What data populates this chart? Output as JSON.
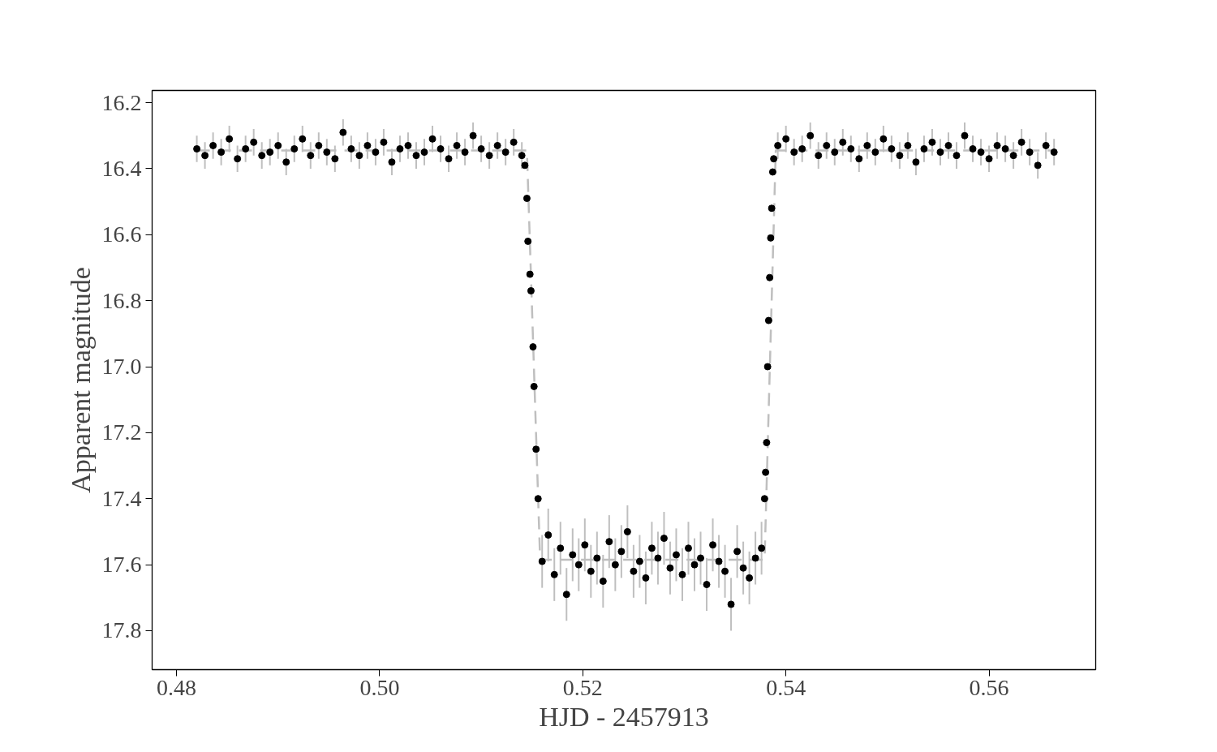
{
  "chart_data": {
    "type": "scatter",
    "xlabel": "HJD - 2457913",
    "ylabel": "Apparent magnitude",
    "xlim": [
      0.4776,
      0.5705
    ],
    "ylim": [
      17.918,
      16.163
    ],
    "xticks": [
      {
        "value": 0.48,
        "label": "0.48"
      },
      {
        "value": 0.5,
        "label": "0.50"
      },
      {
        "value": 0.52,
        "label": "0.52"
      },
      {
        "value": 0.54,
        "label": "0.54"
      },
      {
        "value": 0.56,
        "label": "0.56"
      }
    ],
    "yticks": [
      16.2,
      16.4,
      16.6,
      16.8,
      {
        "value": 17.0,
        "label": "17.0"
      },
      17.2,
      17.4,
      17.6,
      17.8
    ],
    "grid": false,
    "series": [
      {
        "type": "line",
        "color": "#bfbfbf",
        "line_style": "dashed",
        "x": [
          0.482,
          0.5145,
          0.5158,
          0.5379,
          0.539,
          0.5665
        ],
        "values": [
          16.345,
          16.345,
          17.585,
          17.585,
          16.345,
          16.345
        ]
      },
      {
        "marker": "circle",
        "color": "#000000",
        "x": [
          0.482,
          0.4828,
          0.4836,
          0.4844,
          0.4852,
          0.486,
          0.4868,
          0.4876,
          0.4884,
          0.4892,
          0.49,
          0.4908,
          0.4916,
          0.4924,
          0.4932,
          0.494,
          0.4948,
          0.4956,
          0.4964,
          0.4972,
          0.498,
          0.4988,
          0.4996,
          0.5004,
          0.5012,
          0.502,
          0.5028,
          0.5036,
          0.5044,
          0.5052,
          0.506,
          0.5068,
          0.5076,
          0.5084,
          0.5092,
          0.51,
          0.5108,
          0.5116,
          0.5124,
          0.5132,
          0.514,
          0.5143,
          0.5145,
          0.5146,
          0.5148,
          0.5149,
          0.5151,
          0.5152,
          0.5154,
          0.5156,
          0.516,
          0.5166,
          0.5172,
          0.5178,
          0.5184,
          0.519,
          0.5196,
          0.5202,
          0.5208,
          0.5214,
          0.522,
          0.5226,
          0.5232,
          0.5238,
          0.5244,
          0.525,
          0.5256,
          0.5262,
          0.5268,
          0.5274,
          0.528,
          0.5286,
          0.5292,
          0.5298,
          0.5304,
          0.531,
          0.5316,
          0.5322,
          0.5328,
          0.5334,
          0.534,
          0.5346,
          0.5352,
          0.5358,
          0.5364,
          0.537,
          0.5376,
          0.5379,
          0.538,
          0.5381,
          0.5382,
          0.5383,
          0.5384,
          0.5385,
          0.5386,
          0.5387,
          0.5388,
          0.5392,
          0.54,
          0.5408,
          0.5416,
          0.5424,
          0.5432,
          0.544,
          0.5448,
          0.5456,
          0.5464,
          0.5472,
          0.548,
          0.5488,
          0.5496,
          0.5504,
          0.5512,
          0.552,
          0.5528,
          0.5536,
          0.5544,
          0.5552,
          0.556,
          0.5568,
          0.5576,
          0.5584,
          0.5592,
          0.56,
          0.5608,
          0.5616,
          0.5624,
          0.5632,
          0.564,
          0.5648,
          0.5656,
          0.5664
        ],
        "values": [
          16.34,
          16.36,
          16.33,
          16.35,
          16.31,
          16.37,
          16.34,
          16.32,
          16.36,
          16.35,
          16.33,
          16.38,
          16.34,
          16.31,
          16.36,
          16.33,
          16.35,
          16.37,
          16.29,
          16.34,
          16.36,
          16.33,
          16.35,
          16.32,
          16.38,
          16.34,
          16.33,
          16.36,
          16.35,
          16.31,
          16.34,
          16.37,
          16.33,
          16.35,
          16.3,
          16.34,
          16.36,
          16.33,
          16.35,
          16.32,
          16.36,
          16.39,
          16.49,
          16.62,
          16.72,
          16.77,
          16.94,
          17.06,
          17.25,
          17.4,
          17.59,
          17.51,
          17.63,
          17.55,
          17.69,
          17.57,
          17.6,
          17.54,
          17.62,
          17.58,
          17.65,
          17.53,
          17.6,
          17.56,
          17.5,
          17.62,
          17.59,
          17.64,
          17.55,
          17.58,
          17.52,
          17.61,
          17.57,
          17.63,
          17.55,
          17.6,
          17.58,
          17.66,
          17.54,
          17.59,
          17.62,
          17.72,
          17.56,
          17.61,
          17.64,
          17.58,
          17.55,
          17.4,
          17.32,
          17.23,
          17.0,
          16.86,
          16.73,
          16.61,
          16.52,
          16.41,
          16.37,
          16.33,
          16.31,
          16.35,
          16.34,
          16.3,
          16.36,
          16.33,
          16.35,
          16.32,
          16.34,
          16.37,
          16.33,
          16.35,
          16.31,
          16.34,
          16.36,
          16.33,
          16.38,
          16.34,
          16.32,
          16.35,
          16.33,
          16.36,
          16.3,
          16.34,
          16.35,
          16.37,
          16.33,
          16.34,
          16.36,
          16.32,
          16.35,
          16.39,
          16.33,
          16.35
        ],
        "errors": [
          0.04,
          0.04,
          0.04,
          0.04,
          0.04,
          0.04,
          0.04,
          0.04,
          0.04,
          0.04,
          0.04,
          0.04,
          0.04,
          0.04,
          0.04,
          0.04,
          0.04,
          0.04,
          0.04,
          0.04,
          0.04,
          0.04,
          0.04,
          0.04,
          0.04,
          0.04,
          0.04,
          0.04,
          0.04,
          0.04,
          0.04,
          0.04,
          0.04,
          0.04,
          0.04,
          0.04,
          0.04,
          0.04,
          0.04,
          0.04,
          0.04,
          null,
          null,
          null,
          null,
          null,
          null,
          null,
          null,
          null,
          0.08,
          0.08,
          0.08,
          0.08,
          0.08,
          0.08,
          0.08,
          0.08,
          0.08,
          0.08,
          0.08,
          0.08,
          0.08,
          0.08,
          0.08,
          0.08,
          0.08,
          0.08,
          0.08,
          0.08,
          0.08,
          0.08,
          0.08,
          0.08,
          0.08,
          0.08,
          0.08,
          0.08,
          0.08,
          0.08,
          0.08,
          0.08,
          0.08,
          0.08,
          0.08,
          0.08,
          0.08,
          null,
          null,
          null,
          null,
          null,
          null,
          null,
          null,
          null,
          null,
          0.04,
          0.04,
          0.04,
          0.04,
          0.04,
          0.04,
          0.04,
          0.04,
          0.04,
          0.04,
          0.04,
          0.04,
          0.04,
          0.04,
          0.04,
          0.04,
          0.04,
          0.04,
          0.04,
          0.04,
          0.04,
          0.04,
          0.04,
          0.04,
          0.04,
          0.04,
          0.04,
          0.04,
          0.04,
          0.04,
          0.04,
          0.04,
          0.04,
          0.04,
          0.04
        ]
      }
    ]
  }
}
